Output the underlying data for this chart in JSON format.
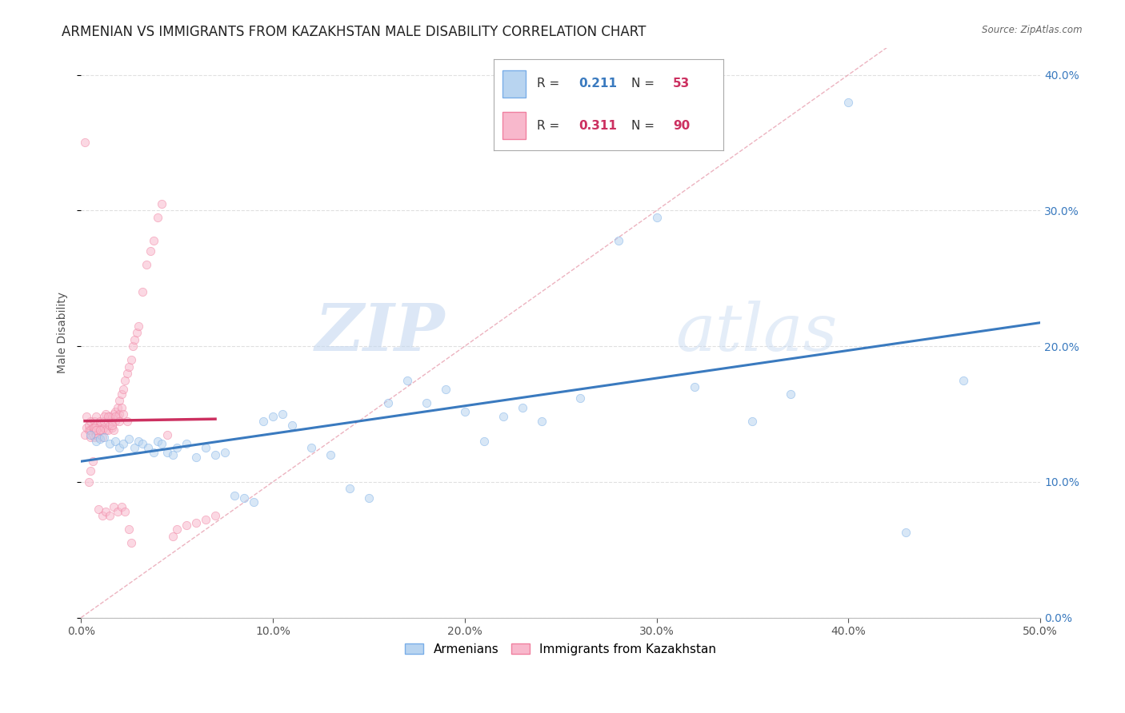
{
  "title": "ARMENIAN VS IMMIGRANTS FROM KAZAKHSTAN MALE DISABILITY CORRELATION CHART",
  "source": "Source: ZipAtlas.com",
  "ylabel": "Male Disability",
  "xlim": [
    0.0,
    0.5
  ],
  "ylim": [
    0.0,
    0.42
  ],
  "watermark_zip": "ZIP",
  "watermark_atlas": "atlas",
  "scatter_color_armenians": "#b8d4f0",
  "scatter_color_kazakhstan": "#f8b8cc",
  "scatter_edgecolor_armenians": "#7aaee8",
  "scatter_edgecolor_kazakhstan": "#f080a0",
  "trendline_color_armenians": "#3a7abf",
  "trendline_color_kazakhstan": "#cc3060",
  "diagonal_color": "#e8a0b0",
  "bg_color": "#ffffff",
  "grid_color": "#e0e0e0",
  "marker_size": 55,
  "marker_alpha": 0.55,
  "title_fontsize": 12,
  "axis_label_fontsize": 10,
  "tick_fontsize": 10,
  "armenians_x": [
    0.005,
    0.008,
    0.01,
    0.012,
    0.015,
    0.018,
    0.02,
    0.022,
    0.025,
    0.028,
    0.03,
    0.032,
    0.035,
    0.038,
    0.04,
    0.042,
    0.045,
    0.048,
    0.05,
    0.055,
    0.06,
    0.065,
    0.07,
    0.075,
    0.08,
    0.085,
    0.09,
    0.095,
    0.1,
    0.105,
    0.11,
    0.12,
    0.13,
    0.14,
    0.15,
    0.16,
    0.17,
    0.18,
    0.19,
    0.2,
    0.21,
    0.22,
    0.23,
    0.24,
    0.26,
    0.28,
    0.3,
    0.32,
    0.35,
    0.37,
    0.4,
    0.43,
    0.46
  ],
  "armenians_y": [
    0.135,
    0.13,
    0.132,
    0.133,
    0.128,
    0.13,
    0.125,
    0.128,
    0.132,
    0.125,
    0.13,
    0.128,
    0.125,
    0.122,
    0.13,
    0.128,
    0.122,
    0.12,
    0.125,
    0.128,
    0.118,
    0.125,
    0.12,
    0.122,
    0.09,
    0.088,
    0.085,
    0.145,
    0.148,
    0.15,
    0.142,
    0.125,
    0.12,
    0.095,
    0.088,
    0.158,
    0.175,
    0.158,
    0.168,
    0.152,
    0.13,
    0.148,
    0.155,
    0.145,
    0.162,
    0.278,
    0.295,
    0.17,
    0.145,
    0.165,
    0.38,
    0.063,
    0.175
  ],
  "kazakhstan_x": [
    0.002,
    0.003,
    0.004,
    0.004,
    0.005,
    0.005,
    0.005,
    0.006,
    0.006,
    0.007,
    0.007,
    0.007,
    0.008,
    0.008,
    0.008,
    0.008,
    0.009,
    0.009,
    0.01,
    0.01,
    0.01,
    0.011,
    0.011,
    0.012,
    0.012,
    0.013,
    0.013,
    0.014,
    0.014,
    0.015,
    0.015,
    0.016,
    0.016,
    0.017,
    0.017,
    0.018,
    0.018,
    0.019,
    0.019,
    0.02,
    0.02,
    0.021,
    0.021,
    0.022,
    0.023,
    0.024,
    0.025,
    0.026,
    0.027,
    0.028,
    0.029,
    0.03,
    0.032,
    0.034,
    0.036,
    0.038,
    0.04,
    0.042,
    0.045,
    0.048,
    0.05,
    0.055,
    0.06,
    0.065,
    0.07,
    0.002,
    0.003,
    0.004,
    0.005,
    0.006,
    0.007,
    0.008,
    0.009,
    0.01,
    0.011,
    0.012,
    0.013,
    0.014,
    0.015,
    0.016,
    0.017,
    0.018,
    0.019,
    0.02,
    0.021,
    0.022,
    0.023,
    0.024,
    0.025,
    0.026
  ],
  "kazakhstan_y": [
    0.135,
    0.14,
    0.138,
    0.142,
    0.133,
    0.138,
    0.145,
    0.135,
    0.14,
    0.138,
    0.133,
    0.145,
    0.138,
    0.142,
    0.135,
    0.148,
    0.14,
    0.133,
    0.138,
    0.142,
    0.145,
    0.138,
    0.133,
    0.14,
    0.145,
    0.138,
    0.15,
    0.145,
    0.138,
    0.142,
    0.148,
    0.14,
    0.145,
    0.138,
    0.15,
    0.145,
    0.152,
    0.148,
    0.155,
    0.15,
    0.16,
    0.155,
    0.165,
    0.168,
    0.175,
    0.18,
    0.185,
    0.19,
    0.2,
    0.205,
    0.21,
    0.215,
    0.24,
    0.26,
    0.27,
    0.278,
    0.295,
    0.305,
    0.135,
    0.06,
    0.065,
    0.068,
    0.07,
    0.072,
    0.075,
    0.35,
    0.148,
    0.1,
    0.108,
    0.115,
    0.14,
    0.138,
    0.08,
    0.138,
    0.075,
    0.148,
    0.078,
    0.148,
    0.075,
    0.142,
    0.082,
    0.148,
    0.078,
    0.145,
    0.082,
    0.15,
    0.078,
    0.145,
    0.065,
    0.055
  ],
  "legend_r_armenians": "0.211",
  "legend_n_armenians": "53",
  "legend_r_kazakhstan": "0.311",
  "legend_n_kazakhstan": "90",
  "legend_label_armenians": "Armenians",
  "legend_label_kazakhstan": "Immigrants from Kazakhstan",
  "color_r_value_armenians": "#3a7abf",
  "color_n_value_armenians": "#cc3060",
  "color_r_value_kazakhstan": "#cc3060",
  "color_n_value_kazakhstan": "#cc3060"
}
